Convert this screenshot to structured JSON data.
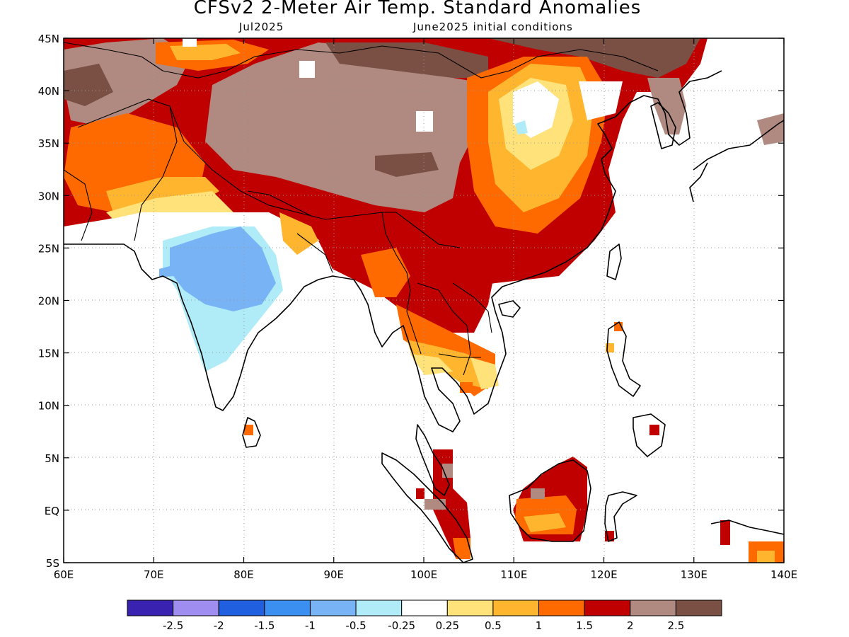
{
  "title": "CFSv2 2-Meter Air Temp. Standard Anomalies",
  "subtitle_left": "Jul2025",
  "subtitle_right": "June2025 initial conditions",
  "map": {
    "lon_range": [
      60,
      140
    ],
    "lat_range": [
      -5,
      45
    ],
    "lon_ticks": [
      {
        "v": 60,
        "label": "60E"
      },
      {
        "v": 70,
        "label": "70E"
      },
      {
        "v": 80,
        "label": "80E"
      },
      {
        "v": 90,
        "label": "90E"
      },
      {
        "v": 100,
        "label": "100E"
      },
      {
        "v": 110,
        "label": "110E"
      },
      {
        "v": 120,
        "label": "120E"
      },
      {
        "v": 130,
        "label": "130E"
      },
      {
        "v": 140,
        "label": "140E"
      }
    ],
    "lat_ticks": [
      {
        "v": 45,
        "label": "45N"
      },
      {
        "v": 40,
        "label": "40N"
      },
      {
        "v": 35,
        "label": "35N"
      },
      {
        "v": 30,
        "label": "30N"
      },
      {
        "v": 25,
        "label": "25N"
      },
      {
        "v": 20,
        "label": "20N"
      },
      {
        "v": 15,
        "label": "15N"
      },
      {
        "v": 10,
        "label": "10N"
      },
      {
        "v": 5,
        "label": "5N"
      },
      {
        "v": 0,
        "label": "EQ"
      },
      {
        "v": -5,
        "label": "5S"
      }
    ],
    "grid": "dotted"
  },
  "colorbar": {
    "colors": [
      "#3a22b0",
      "#9f8df0",
      "#1f5fe0",
      "#3a8ff0",
      "#78b4f5",
      "#b0ecf8",
      "#ffffff",
      "#ffe27a",
      "#ffb62e",
      "#ff6a00",
      "#c00000",
      "#b08a80",
      "#7a5045"
    ],
    "labels": [
      "-2.5",
      "-2",
      "-1.5",
      "-1",
      "-0.5",
      "-0.25",
      "0.25",
      "0.5",
      "1",
      "1.5",
      "2",
      "2.5"
    ]
  }
}
